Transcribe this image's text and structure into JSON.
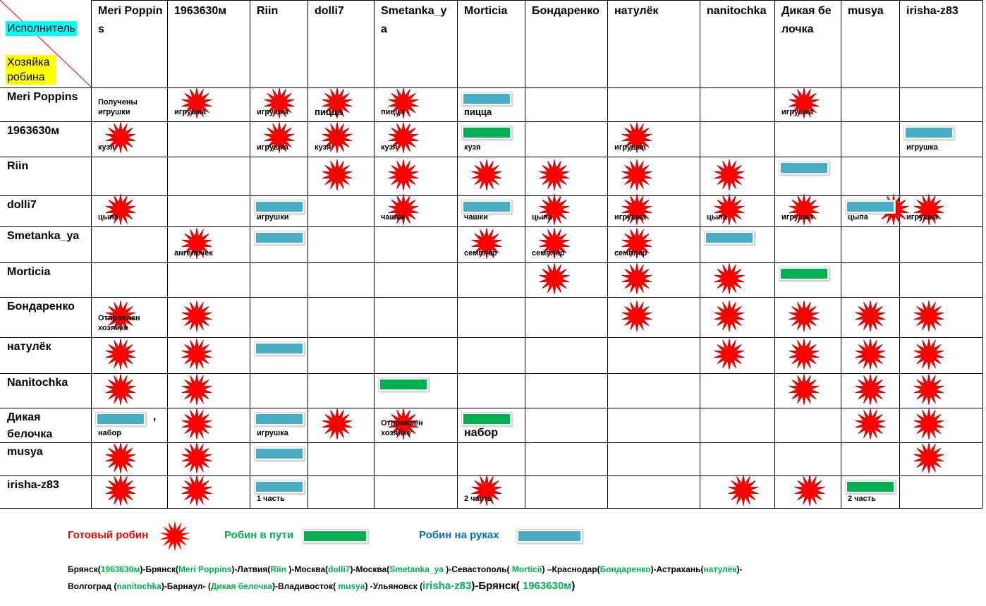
{
  "header": {
    "executor": "Исполнитель",
    "owner": "Хозяйка робина"
  },
  "columns": [
    "Meri Poppins",
    "1963630м",
    "Riin",
    "dolli7",
    "Smetanka_ya",
    "Morticia",
    "Бондаренко",
    "натулёк",
    "nanitochka",
    "Дикая белочка",
    "musya",
    "irisha-z83"
  ],
  "rows": [
    "Meri Poppins",
    "1963630м",
    "Riin",
    "dolli7",
    "Smetanka_ya",
    "Morticia",
    "Бондаренко",
    "натулёк",
    "Nanitochka",
    "Дикая белочка",
    "musya",
    "irisha-z83"
  ],
  "cells": {
    "r0_c0": "Получены игрушки",
    "r0_c1": "игрушка",
    "r0_c2": "игрушка",
    "r0_c3": "пицца",
    "r0_c4": "пицца",
    "r0_c5": "пицца",
    "r0_c9": "игрушка",
    "r1_c0": "кузя",
    "r1_c2": "игрушка",
    "r1_c3": "кузя",
    "r1_c4": "кузя",
    "r1_c5": "кузя",
    "r1_c7": "игрушка",
    "r1_c11": "игрушка",
    "r3_c0": "цыпа",
    "r3_c2": "игрушки",
    "r3_c4": "чашки",
    "r3_c5": "чашки",
    "r3_c6": "цыпа",
    "r3_c7": "игрушка",
    "r3_c8": "цыпа",
    "r3_c9": "игрушка",
    "r3_c10": "цыпа",
    "r3_c11": "игрушка",
    "r4_c1": "ангелочек",
    "r4_c5": "семплер",
    "r4_c6": "семплер",
    "r4_c7": "семплер",
    "r6_c0": "Отправлен хозяйке",
    "r9_c0": "набор",
    "r9_c0_comma": ",",
    "r9_c2": "игрушка",
    "r9_c4": "Отправлен хозяйке",
    "r9_c5": "набор",
    "r11_c2": "1 часть",
    "r11_c5": "2 часть",
    "r11_c10": "2 часть"
  },
  "marks": [
    {
      "row": 0,
      "col": 1,
      "type": "star"
    },
    {
      "row": 0,
      "col": 2,
      "type": "star"
    },
    {
      "row": 0,
      "col": 3,
      "type": "star"
    },
    {
      "row": 0,
      "col": 4,
      "type": "star"
    },
    {
      "row": 0,
      "col": 5,
      "type": "bar-blue"
    },
    {
      "row": 0,
      "col": 9,
      "type": "star"
    },
    {
      "row": 1,
      "col": 0,
      "type": "star"
    },
    {
      "row": 1,
      "col": 2,
      "type": "star"
    },
    {
      "row": 1,
      "col": 3,
      "type": "star"
    },
    {
      "row": 1,
      "col": 4,
      "type": "star"
    },
    {
      "row": 1,
      "col": 5,
      "type": "bar-green"
    },
    {
      "row": 1,
      "col": 7,
      "type": "star"
    },
    {
      "row": 1,
      "col": 11,
      "type": "bar-blue"
    },
    {
      "row": 2,
      "col": 3,
      "type": "star"
    },
    {
      "row": 2,
      "col": 4,
      "type": "star"
    },
    {
      "row": 2,
      "col": 5,
      "type": "star"
    },
    {
      "row": 2,
      "col": 6,
      "type": "star"
    },
    {
      "row": 2,
      "col": 7,
      "type": "star"
    },
    {
      "row": 2,
      "col": 8,
      "type": "star"
    },
    {
      "row": 2,
      "col": 9,
      "type": "bar-blue"
    },
    {
      "row": 3,
      "col": 0,
      "type": "star"
    },
    {
      "row": 3,
      "col": 2,
      "type": "bar-blue"
    },
    {
      "row": 3,
      "col": 4,
      "type": "star"
    },
    {
      "row": 3,
      "col": 5,
      "type": "bar-blue"
    },
    {
      "row": 3,
      "col": 6,
      "type": "star"
    },
    {
      "row": 3,
      "col": 7,
      "type": "star"
    },
    {
      "row": 3,
      "col": 8,
      "type": "star"
    },
    {
      "row": 3,
      "col": 9,
      "type": "star"
    },
    {
      "row": 3,
      "col": 10,
      "type": "star"
    },
    {
      "row": 3,
      "col": 10,
      "type": "bar-blue"
    },
    {
      "row": 3,
      "col": 11,
      "type": "star"
    },
    {
      "row": 4,
      "col": 1,
      "type": "star"
    },
    {
      "row": 4,
      "col": 2,
      "type": "bar-blue"
    },
    {
      "row": 4,
      "col": 5,
      "type": "star"
    },
    {
      "row": 4,
      "col": 6,
      "type": "star"
    },
    {
      "row": 4,
      "col": 7,
      "type": "star"
    },
    {
      "row": 4,
      "col": 8,
      "type": "bar-blue"
    },
    {
      "row": 5,
      "col": 6,
      "type": "star"
    },
    {
      "row": 5,
      "col": 7,
      "type": "star"
    },
    {
      "row": 5,
      "col": 8,
      "type": "star"
    },
    {
      "row": 5,
      "col": 9,
      "type": "bar-green"
    },
    {
      "row": 6,
      "col": 0,
      "type": "star"
    },
    {
      "row": 6,
      "col": 1,
      "type": "star"
    },
    {
      "row": 6,
      "col": 7,
      "type": "star"
    },
    {
      "row": 6,
      "col": 8,
      "type": "star"
    },
    {
      "row": 6,
      "col": 9,
      "type": "star"
    },
    {
      "row": 6,
      "col": 10,
      "type": "star"
    },
    {
      "row": 6,
      "col": 11,
      "type": "star"
    },
    {
      "row": 7,
      "col": 0,
      "type": "star"
    },
    {
      "row": 7,
      "col": 1,
      "type": "star"
    },
    {
      "row": 7,
      "col": 2,
      "type": "bar-blue"
    },
    {
      "row": 7,
      "col": 8,
      "type": "star"
    },
    {
      "row": 7,
      "col": 9,
      "type": "star"
    },
    {
      "row": 7,
      "col": 10,
      "type": "star"
    },
    {
      "row": 7,
      "col": 11,
      "type": "star"
    },
    {
      "row": 8,
      "col": 0,
      "type": "star"
    },
    {
      "row": 8,
      "col": 1,
      "type": "star"
    },
    {
      "row": 8,
      "col": 4,
      "type": "bar-green"
    },
    {
      "row": 8,
      "col": 9,
      "type": "star"
    },
    {
      "row": 8,
      "col": 10,
      "type": "star"
    },
    {
      "row": 8,
      "col": 11,
      "type": "star"
    },
    {
      "row": 9,
      "col": 0,
      "type": "bar-blue"
    },
    {
      "row": 9,
      "col": 1,
      "type": "star"
    },
    {
      "row": 9,
      "col": 2,
      "type": "bar-blue"
    },
    {
      "row": 9,
      "col": 3,
      "type": "star"
    },
    {
      "row": 9,
      "col": 4,
      "type": "star"
    },
    {
      "row": 9,
      "col": 5,
      "type": "bar-green"
    },
    {
      "row": 9,
      "col": 10,
      "type": "star"
    },
    {
      "row": 9,
      "col": 11,
      "type": "star"
    },
    {
      "row": 10,
      "col": 0,
      "type": "star"
    },
    {
      "row": 10,
      "col": 1,
      "type": "star"
    },
    {
      "row": 10,
      "col": 2,
      "type": "bar-blue"
    },
    {
      "row": 10,
      "col": 11,
      "type": "star"
    },
    {
      "row": 11,
      "col": 0,
      "type": "star"
    },
    {
      "row": 11,
      "col": 1,
      "type": "star"
    },
    {
      "row": 11,
      "col": 2,
      "type": "bar-blue"
    },
    {
      "row": 11,
      "col": 5,
      "type": "star"
    },
    {
      "row": 11,
      "col": 8,
      "type": "star"
    },
    {
      "row": 11,
      "col": 9,
      "type": "star"
    },
    {
      "row": 11,
      "col": 10,
      "type": "bar-green"
    }
  ],
  "legend": {
    "ready": "Готовый робин",
    "in_transit": "Робин в пути",
    "in_hands": "Робин на руках"
  },
  "route": {
    "line1": [
      {
        "t": "Брянск("
      },
      {
        "t": "1963630м",
        "g": true
      },
      {
        "t": ")-Брянск("
      },
      {
        "t": "Meri Poppins",
        "g": true
      },
      {
        "t": ")-Латвия("
      },
      {
        "t": "Riin ",
        "g": true
      },
      {
        "t": ")-Москва("
      },
      {
        "t": "dolli7",
        "g": true
      },
      {
        "t": ")-Москва("
      },
      {
        "t": "Smetanka_ya ",
        "g": true
      },
      {
        "t": ")-Севастополь( "
      },
      {
        "t": "Morticii",
        "g": true
      },
      {
        "t": ") –Краснодар("
      },
      {
        "t": "Бондаренко",
        "g": true
      },
      {
        "t": ")-Астрахань("
      },
      {
        "t": "натулёк",
        "g": true
      },
      {
        "t": ")-"
      }
    ],
    "line2": [
      {
        "t": "Волгоград ("
      },
      {
        "t": "nanitochka",
        "g": true
      },
      {
        "t": ")-Барнаул- ("
      },
      {
        "t": "Дикая белочка",
        "g": true
      },
      {
        "t": ")-Владивосток( "
      },
      {
        "t": "musya",
        "g": true
      },
      {
        "t": ") -Ульяновск ("
      },
      {
        "t": "irisha-z83",
        "g": true,
        "big": true
      },
      {
        "t": ")-Брянск( ",
        "big": true
      },
      {
        "t": "1963630м",
        "g": true,
        "big": true
      },
      {
        "t": ")",
        "big": true
      }
    ]
  },
  "colors": {
    "ready": "#ff0000",
    "in_transit": "#00b050",
    "in_hands": "#0070c0",
    "executor_bg": "#00ffff",
    "owner_bg": "#ffff00"
  }
}
